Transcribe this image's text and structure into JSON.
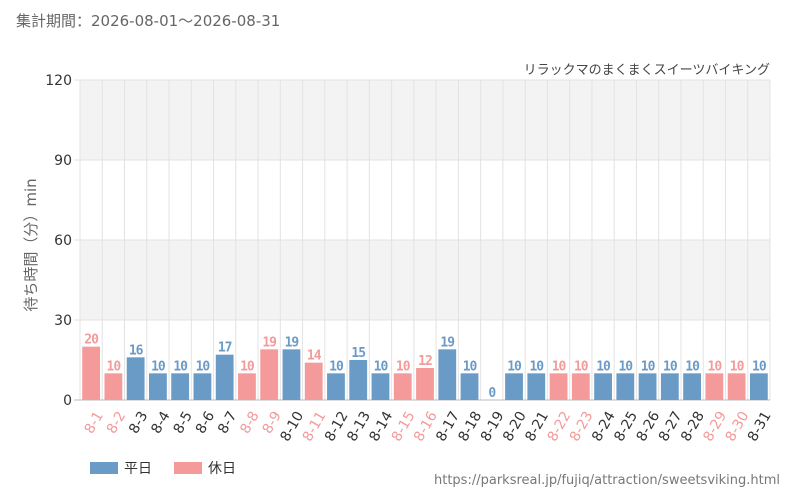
{
  "header": {
    "period": "集計期間：2026-08-01～2026-08-31"
  },
  "colors": {
    "weekday": "#6a9bc7",
    "holiday": "#f49a9a",
    "grid": "#e3e3e3",
    "band": "#f3f3f3"
  },
  "legend": {
    "weekday": "平日",
    "holiday": "休日"
  },
  "source": "https://parksreal.jp/fujiq/attraction/sweetsviking.html",
  "chart_data": {
    "type": "bar",
    "title": "リラックマのまくまくスイーツバイキング",
    "ylabel": "待ち時間（分）min",
    "ylim": [
      0,
      120
    ],
    "yticks": [
      0,
      30,
      60,
      90,
      120
    ],
    "categories": [
      "8-1",
      "8-2",
      "8-3",
      "8-4",
      "8-5",
      "8-6",
      "8-7",
      "8-8",
      "8-9",
      "8-10",
      "8-11",
      "8-12",
      "8-13",
      "8-14",
      "8-15",
      "8-16",
      "8-17",
      "8-18",
      "8-19",
      "8-20",
      "8-21",
      "8-22",
      "8-23",
      "8-24",
      "8-25",
      "8-26",
      "8-27",
      "8-28",
      "8-29",
      "8-30",
      "8-31"
    ],
    "values": [
      20,
      10,
      16,
      10,
      10,
      10,
      17,
      10,
      19,
      19,
      14,
      10,
      15,
      10,
      10,
      12,
      19,
      10,
      0,
      10,
      10,
      10,
      10,
      10,
      10,
      10,
      10,
      10,
      10,
      10,
      10
    ],
    "day_type": [
      "holiday",
      "holiday",
      "weekday",
      "weekday",
      "weekday",
      "weekday",
      "weekday",
      "holiday",
      "holiday",
      "weekday",
      "holiday",
      "weekday",
      "weekday",
      "weekday",
      "holiday",
      "holiday",
      "weekday",
      "weekday",
      "weekday",
      "weekday",
      "weekday",
      "holiday",
      "holiday",
      "weekday",
      "weekday",
      "weekday",
      "weekday",
      "weekday",
      "holiday",
      "holiday",
      "weekday"
    ]
  }
}
